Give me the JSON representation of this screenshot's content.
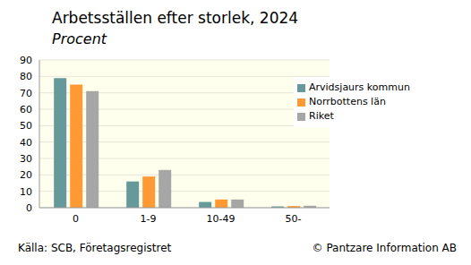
{
  "chart_data": {
    "type": "bar",
    "title": "Arbetsställen efter storlek, 2024",
    "subtitle": "Procent",
    "source": "Källa: SCB, Företagsregistret",
    "copyright": "© Pantzare Information AB",
    "categories": [
      "0",
      "1-9",
      "10-49",
      "50-"
    ],
    "series": [
      {
        "name": "Arvidsjaurs kommun",
        "color": "#669999",
        "values": [
          79,
          16,
          3.5,
          0.8
        ]
      },
      {
        "name": "Norrbottens län",
        "color": "#ff9933",
        "values": [
          75,
          19,
          5,
          1
        ]
      },
      {
        "name": "Riket",
        "color": "#a6a6a6",
        "values": [
          71,
          23,
          5,
          1.2
        ]
      }
    ],
    "ylim": [
      0,
      90
    ],
    "yticks": [
      0,
      10,
      20,
      30,
      40,
      50,
      60,
      70,
      80,
      90
    ],
    "grid": true,
    "legend": "upper right"
  }
}
